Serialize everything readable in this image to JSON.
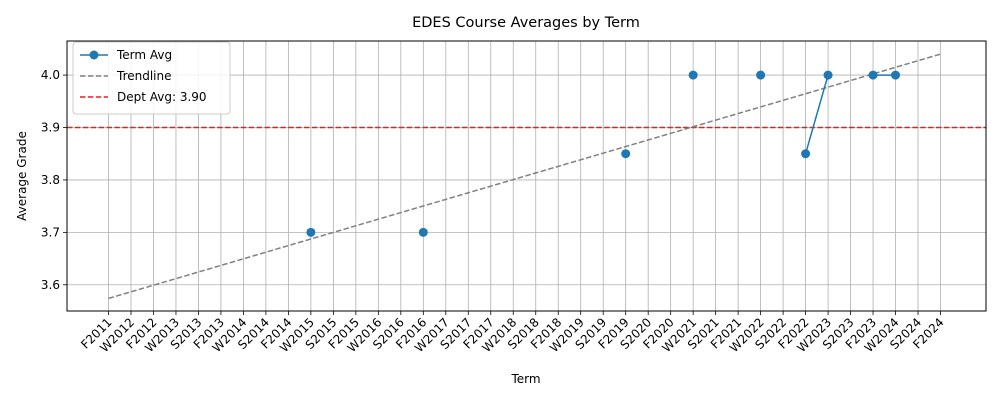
{
  "chart_data": {
    "type": "line",
    "title": "EDES Course Averages by Term",
    "xlabel": "Term",
    "ylabel": "Average Grade",
    "categories": [
      "F2011",
      "W2012",
      "F2012",
      "W2013",
      "S2013",
      "F2013",
      "W2014",
      "S2014",
      "F2014",
      "W2015",
      "S2015",
      "F2015",
      "W2016",
      "S2016",
      "F2016",
      "W2017",
      "S2017",
      "F2017",
      "W2018",
      "S2018",
      "F2018",
      "W2019",
      "S2019",
      "F2019",
      "S2020",
      "F2020",
      "W2021",
      "S2021",
      "F2021",
      "W2022",
      "S2022",
      "F2022",
      "W2023",
      "S2023",
      "F2023",
      "W2024",
      "S2024",
      "F2024"
    ],
    "ylim": [
      3.55,
      4.065
    ],
    "yticks": [
      3.6,
      3.7,
      3.8,
      3.9,
      4.0
    ],
    "ytick_labels": [
      "3.6",
      "3.7",
      "3.8",
      "3.9",
      "4.0"
    ],
    "grid": true,
    "legend_position": "top-left",
    "series": [
      {
        "name": "Term Avg",
        "kind": "line-markers",
        "color": "#1f77b4",
        "points": [
          {
            "term": "W2015",
            "value": 3.7
          },
          {
            "term": "F2016",
            "value": 3.7
          },
          {
            "term": "F2019",
            "value": 3.85
          },
          {
            "term": "W2021",
            "value": 4.0
          },
          {
            "term": "W2022",
            "value": 4.0
          },
          {
            "term": "F2022",
            "value": 3.85
          },
          {
            "term": "W2023",
            "value": 4.0
          },
          {
            "term": "F2023",
            "value": 4.0
          },
          {
            "term": "W2024",
            "value": 4.0
          }
        ],
        "connected_segments": [
          [
            "F2022",
            "W2023"
          ],
          [
            "F2023",
            "W2024"
          ]
        ]
      },
      {
        "name": "Trendline",
        "kind": "dashed-line",
        "color": "#808080",
        "start": {
          "term": "F2011",
          "value": 3.574
        },
        "end": {
          "term": "F2024",
          "value": 4.04
        }
      },
      {
        "name": "Dept Avg: 3.90",
        "kind": "horizontal-dashed",
        "color": "#d62728",
        "value": 3.9
      }
    ]
  }
}
